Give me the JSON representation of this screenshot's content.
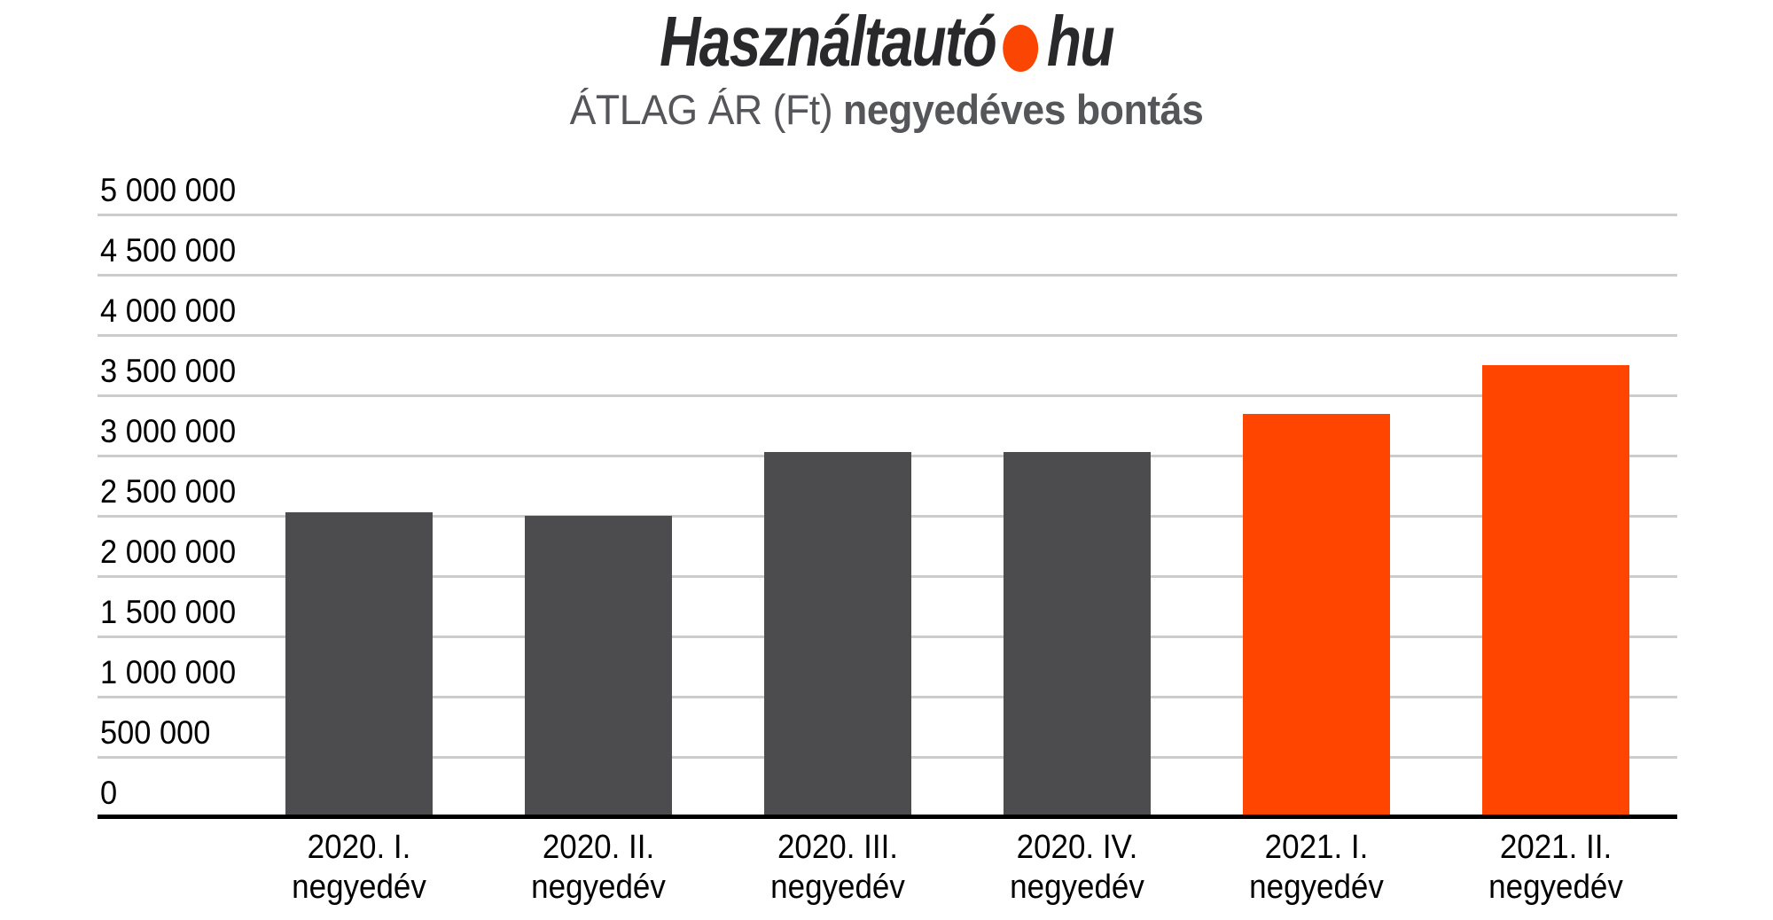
{
  "brand": {
    "name": "Használtautó",
    "tld": "hu",
    "dot_color": "#fb4502",
    "text_color": "#29292b"
  },
  "subtitle": {
    "regular": "ÁTLAG ÁR (Ft) ",
    "bold": "negyedéves bontás"
  },
  "chart_data": {
    "type": "bar",
    "title": "ÁTLAG ÁR (Ft) negyedéves bontás",
    "xlabel": "",
    "ylabel": "",
    "unit": "Ft",
    "categories": [
      "2020. I. negyedév",
      "2020. II. negyedév",
      "2020. III. negyedév",
      "2020. IV. negyedév",
      "2021. I. negyedév",
      "2021. II. negyedév"
    ],
    "values": [
      2540000,
      2510000,
      3040000,
      3040000,
      3350000,
      3760000
    ],
    "bar_colors": [
      "#4c4c4e",
      "#4c4c4e",
      "#4c4c4e",
      "#4c4c4e",
      "#ff4500",
      "#ff4500"
    ],
    "ylim": [
      0,
      5000000
    ],
    "ytick_step": 500000,
    "yticks": [
      {
        "value": 0,
        "label": "0"
      },
      {
        "value": 500000,
        "label": "500 000"
      },
      {
        "value": 1000000,
        "label": "1 000 000"
      },
      {
        "value": 1500000,
        "label": "1 500 000"
      },
      {
        "value": 2000000,
        "label": "2 000 000"
      },
      {
        "value": 2500000,
        "label": "2 500 000"
      },
      {
        "value": 3000000,
        "label": "3 000 000"
      },
      {
        "value": 3500000,
        "label": "3 500 000"
      },
      {
        "value": 4000000,
        "label": "4 000 000"
      },
      {
        "value": 4500000,
        "label": "4 500 000"
      },
      {
        "value": 5000000,
        "label": "5 000 000"
      }
    ],
    "grid": true,
    "legend": false,
    "colors": {
      "bar_default": "#4c4c4e",
      "bar_highlight": "#ff4500",
      "gridline": "#cccccc",
      "axis": "#000000",
      "tick_text": "#000000"
    }
  }
}
